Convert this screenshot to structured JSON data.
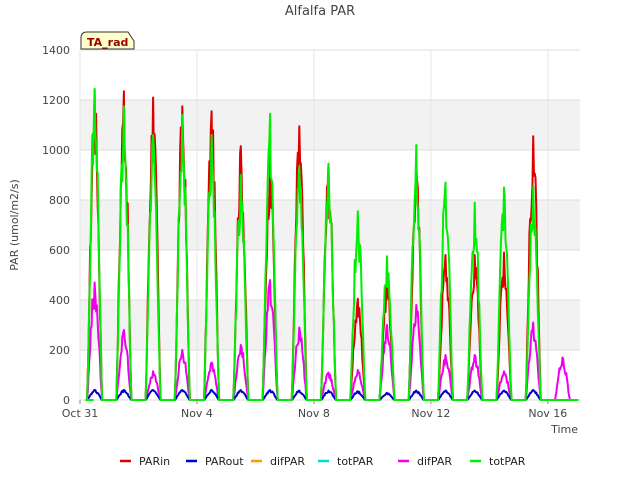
{
  "chart_data": {
    "type": "line",
    "title": "Alfalfa PAR",
    "xlabel": "Time",
    "ylabel": "PAR (umol/m2/s)",
    "ylim": [
      0,
      1400
    ],
    "yticks": [
      0,
      200,
      400,
      600,
      800,
      1000,
      1200,
      1400
    ],
    "xlim": [
      0,
      17.1
    ],
    "xticks": [
      {
        "day": 0,
        "label": "Oct 31"
      },
      {
        "day": 4,
        "label": "Nov 4"
      },
      {
        "day": 8,
        "label": "Nov 8"
      },
      {
        "day": 12,
        "label": "Nov 12"
      },
      {
        "day": 16,
        "label": "Nov 16"
      }
    ],
    "grid": true,
    "banded_background": true,
    "legend_position": "bottom",
    "site_badge": "TA_rad",
    "series": [
      {
        "name": "PARin",
        "color": "#dd0000",
        "daily_peaks": [
          1240,
          1235,
          1210,
          1175,
          1155,
          1015,
          980,
          1095,
          945,
          405,
          480,
          930,
          580,
          580,
          590,
          1055
        ]
      },
      {
        "name": "PARout",
        "color": "#0000cc",
        "daily_peaks": [
          40,
          40,
          40,
          40,
          40,
          40,
          40,
          38,
          38,
          35,
          28,
          38,
          38,
          38,
          38,
          40
        ]
      },
      {
        "name": "difPAR",
        "color": "#ff9900",
        "daily_peaks": []
      },
      {
        "name": "totPAR",
        "color": "#00dddd",
        "daily_peaks": []
      },
      {
        "name": "difPAR",
        "color": "#ee00ee",
        "daily_peaks": [
          470,
          280,
          115,
          200,
          150,
          220,
          480,
          290,
          110,
          120,
          300,
          380,
          180,
          180,
          115,
          310,
          170
        ]
      },
      {
        "name": "totPAR",
        "color": "#00ee00",
        "daily_peaks": [
          1245,
          1175,
          1060,
          1140,
          1060,
          900,
          1145,
          935,
          945,
          755,
          575,
          1020,
          870,
          790,
          850,
          855
        ]
      }
    ]
  }
}
